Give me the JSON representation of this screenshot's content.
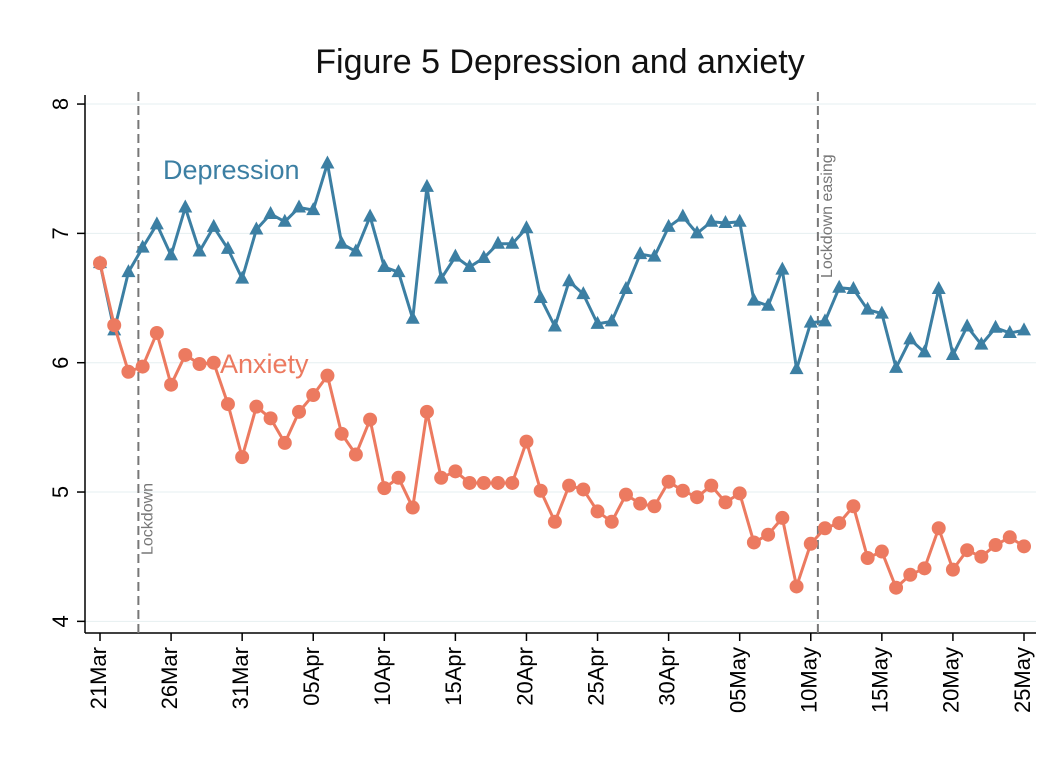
{
  "chart_data": {
    "type": "line",
    "title": "Figure 5 Depression and anxiety",
    "categories": [
      "21Mar",
      null,
      null,
      null,
      null,
      "26Mar",
      null,
      null,
      null,
      null,
      "31Mar",
      null,
      null,
      null,
      null,
      "05Apr",
      null,
      null,
      null,
      null,
      "10Apr",
      null,
      null,
      null,
      null,
      "15Apr",
      null,
      null,
      null,
      null,
      "20Apr",
      null,
      null,
      null,
      null,
      "25Apr",
      null,
      null,
      null,
      null,
      "30Apr",
      null,
      null,
      null,
      null,
      "05May",
      null,
      null,
      null,
      null,
      "10May",
      null,
      null,
      null,
      null,
      "15May",
      null,
      null,
      null,
      null,
      "20May",
      null,
      null,
      null,
      null,
      "25May"
    ],
    "series": [
      {
        "name": "Depression",
        "color": "#3c7fa3",
        "marker": "triangle",
        "values": [
          6.77,
          6.25,
          6.7,
          6.89,
          7.07,
          6.83,
          7.2,
          6.86,
          7.05,
          6.88,
          6.65,
          7.03,
          7.15,
          7.09,
          7.2,
          7.18,
          7.54,
          6.92,
          6.86,
          7.13,
          6.74,
          6.7,
          6.34,
          7.36,
          6.65,
          6.82,
          6.74,
          6.81,
          6.92,
          6.92,
          7.04,
          6.5,
          6.28,
          6.63,
          6.53,
          6.3,
          6.32,
          6.57,
          6.84,
          6.82,
          7.05,
          7.13,
          7.0,
          7.09,
          7.08,
          7.09,
          6.48,
          6.44,
          6.72,
          5.95,
          6.31,
          6.32,
          6.58,
          6.57,
          6.41,
          6.38,
          5.96,
          6.18,
          6.08,
          6.57,
          6.06,
          6.28,
          6.14,
          6.27,
          6.23,
          6.25
        ]
      },
      {
        "name": "Anxiety",
        "color": "#ec7a60",
        "marker": "circle",
        "values": [
          6.77,
          6.29,
          5.93,
          5.97,
          6.23,
          5.83,
          6.06,
          5.99,
          6.0,
          5.68,
          5.27,
          5.66,
          5.57,
          5.38,
          5.62,
          5.75,
          5.9,
          5.45,
          5.29,
          5.56,
          5.03,
          5.11,
          4.88,
          5.62,
          5.11,
          5.16,
          5.07,
          5.07,
          5.07,
          5.07,
          5.39,
          5.01,
          4.77,
          5.05,
          5.02,
          4.85,
          4.77,
          4.98,
          4.91,
          4.89,
          5.08,
          5.01,
          4.96,
          5.05,
          4.92,
          4.99,
          4.61,
          4.67,
          4.8,
          4.27,
          4.6,
          4.72,
          4.76,
          4.89,
          4.49,
          4.54,
          4.26,
          4.36,
          4.41,
          4.72,
          4.4,
          4.55,
          4.5,
          4.59,
          4.65,
          4.58
        ]
      }
    ],
    "ylim": [
      3.91,
      8.07
    ],
    "yticks": [
      4,
      5,
      6,
      7,
      8
    ],
    "grid": true,
    "annotations": [
      {
        "text": "Lockdown",
        "x": 2.7
      },
      {
        "text": "Lockdown easing",
        "x": 50.5
      }
    ]
  }
}
